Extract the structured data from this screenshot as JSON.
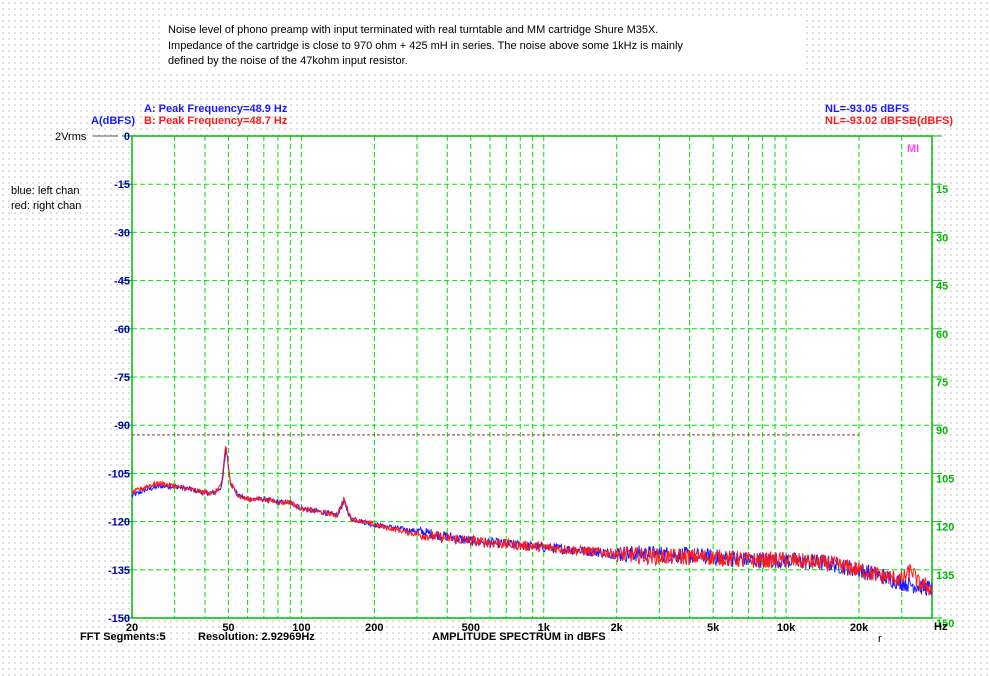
{
  "description": {
    "line1": "Noise level of phono preamp with input terminated with real turntable and MM cartridge Shure M35X.",
    "line2": "Impedance of the cartridge is close to 970 ohm + 425 mH in series. The noise above some 1kHz is mainly",
    "line3": "defined by the noise of the 47kohm input resistor."
  },
  "header": {
    "peak_a": "A: Peak Frequency=48.9 Hz",
    "a_unit": "A(dBFS)",
    "peak_b": "B: Peak Frequency=48.7 Hz",
    "nl_a": "NL=-93.05 dBFS",
    "nl_b": "NL=-93.02 dBFSB(dBFS)",
    "ref_level": "2Vrms",
    "logo": "MI"
  },
  "legend": {
    "blue": "blue: left chan",
    "red": "red: right chan"
  },
  "footer": {
    "segments": "FFT Segments:5",
    "resolution": "Resolution: 2.92969Hz",
    "title": "AMPLITUDE SPECTRUM in dBFS",
    "xunit": "Hz",
    "corner": "r"
  },
  "colors": {
    "background": "#ffffff",
    "grid": "#00e000",
    "axis": "#00bb00",
    "left_tick_label": "#0000aa",
    "right_tick_label": "#00bb00",
    "channel_a": "#1a1aff",
    "channel_b": "#ff1a1a",
    "noise_level_line": "#993333",
    "peak_a_text": "#1a1aff",
    "peak_b_text": "#ff1a1a",
    "logo": "#ff44ff"
  },
  "chart_data": {
    "type": "line",
    "title": "AMPLITUDE SPECTRUM in dBFS",
    "xscale": "log",
    "xlim": [
      20,
      40000
    ],
    "ylim": [
      -150,
      0
    ],
    "xlabel": "Hz",
    "ylabel": "A(dBFS)",
    "grid": true,
    "x_ticks": [
      {
        "v": 20,
        "label": "20"
      },
      {
        "v": 50,
        "label": "50"
      },
      {
        "v": 100,
        "label": "100"
      },
      {
        "v": 200,
        "label": "200"
      },
      {
        "v": 500,
        "label": "500"
      },
      {
        "v": 1000,
        "label": "1k"
      },
      {
        "v": 2000,
        "label": "2k"
      },
      {
        "v": 5000,
        "label": "5k"
      },
      {
        "v": 10000,
        "label": "10k"
      },
      {
        "v": 20000,
        "label": "20k"
      }
    ],
    "x_minor": [
      30,
      40,
      60,
      70,
      80,
      90,
      300,
      400,
      600,
      700,
      800,
      900,
      3000,
      4000,
      6000,
      7000,
      8000,
      9000,
      30000
    ],
    "y_ticks_left": [
      "0",
      "-15",
      "-30",
      "-45",
      "-60",
      "-75",
      "-90",
      "-105",
      "-120",
      "-135",
      "-150"
    ],
    "y_ticks_right": [
      "",
      "15",
      "30",
      "45",
      "60",
      "75",
      "90",
      "105",
      "120",
      "135",
      "150"
    ],
    "noise_level": {
      "value": -93.02,
      "x_start": 20,
      "x_end": 20000
    },
    "series": [
      {
        "name": "A",
        "points": [
          [
            20,
            -112
          ],
          [
            23,
            -110
          ],
          [
            26,
            -109
          ],
          [
            30,
            -109
          ],
          [
            35,
            -110
          ],
          [
            40,
            -111
          ],
          [
            44,
            -111
          ],
          [
            47,
            -109
          ],
          [
            48.9,
            -97
          ],
          [
            51,
            -108
          ],
          [
            55,
            -112
          ],
          [
            60,
            -113
          ],
          [
            70,
            -113
          ],
          [
            80,
            -114
          ],
          [
            90,
            -114
          ],
          [
            100,
            -116
          ],
          [
            120,
            -117
          ],
          [
            140,
            -118
          ],
          [
            150,
            -114
          ],
          [
            160,
            -119
          ],
          [
            200,
            -121
          ],
          [
            300,
            -123
          ],
          [
            500,
            -126
          ],
          [
            700,
            -127
          ],
          [
            1000,
            -128
          ],
          [
            2000,
            -130
          ],
          [
            3000,
            -130
          ],
          [
            5000,
            -131
          ],
          [
            7000,
            -132
          ],
          [
            10000,
            -132
          ],
          [
            15000,
            -133
          ],
          [
            20000,
            -135
          ],
          [
            25000,
            -137
          ],
          [
            30000,
            -139
          ],
          [
            35000,
            -140
          ],
          [
            40000,
            -141
          ]
        ]
      },
      {
        "name": "B",
        "points": [
          [
            20,
            -111
          ],
          [
            23,
            -109
          ],
          [
            26,
            -108
          ],
          [
            30,
            -109
          ],
          [
            35,
            -110
          ],
          [
            40,
            -111
          ],
          [
            44,
            -111
          ],
          [
            47,
            -108
          ],
          [
            48.7,
            -96
          ],
          [
            51,
            -108
          ],
          [
            55,
            -112
          ],
          [
            60,
            -113
          ],
          [
            70,
            -113
          ],
          [
            80,
            -114
          ],
          [
            90,
            -114
          ],
          [
            100,
            -116
          ],
          [
            120,
            -117
          ],
          [
            140,
            -118
          ],
          [
            150,
            -113
          ],
          [
            160,
            -119
          ],
          [
            200,
            -121
          ],
          [
            300,
            -124
          ],
          [
            500,
            -126
          ],
          [
            700,
            -127
          ],
          [
            1000,
            -128
          ],
          [
            2000,
            -130
          ],
          [
            3000,
            -131
          ],
          [
            5000,
            -131
          ],
          [
            7000,
            -132
          ],
          [
            10000,
            -132
          ],
          [
            15000,
            -133
          ],
          [
            20000,
            -135
          ],
          [
            25000,
            -137
          ],
          [
            30000,
            -138
          ],
          [
            33000,
            -135
          ],
          [
            35000,
            -139
          ],
          [
            40000,
            -141
          ]
        ]
      }
    ]
  }
}
